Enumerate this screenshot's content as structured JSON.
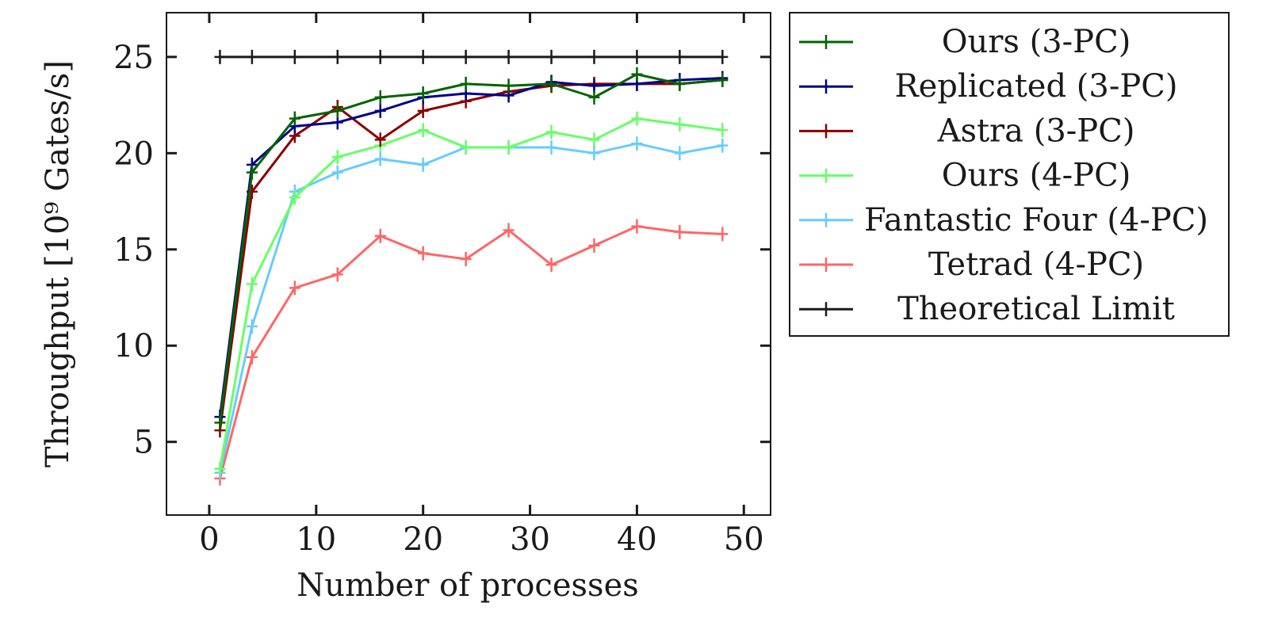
{
  "chart_data": {
    "type": "line",
    "xlabel": "Number of processes",
    "ylabel": "Throughput [10⁹ Gates/s]",
    "xlim": [
      -4,
      52.5
    ],
    "ylim": [
      1.2,
      27.3
    ],
    "xticks": [
      0,
      10,
      20,
      30,
      40,
      50
    ],
    "yticks": [
      5,
      10,
      15,
      20,
      25
    ],
    "grid": false,
    "legend_position": "outside-right",
    "x": [
      1,
      4,
      8,
      12,
      16,
      20,
      24,
      28,
      32,
      36,
      40,
      44,
      48
    ],
    "series": [
      {
        "name": "Ours (3-PC)",
        "color": "#006400",
        "values": [
          6.0,
          19.0,
          21.8,
          22.2,
          22.9,
          23.1,
          23.6,
          23.5,
          23.6,
          22.9,
          24.1,
          23.6,
          23.8
        ]
      },
      {
        "name": "Replicated (3-PC)",
        "color": "#00008b",
        "values": [
          6.3,
          19.4,
          21.4,
          21.6,
          22.2,
          22.9,
          23.1,
          23.0,
          23.7,
          23.5,
          23.6,
          23.8,
          23.9
        ]
      },
      {
        "name": "Astra (3-PC)",
        "color": "#8b0000",
        "values": [
          5.6,
          18.0,
          20.9,
          22.4,
          20.7,
          22.2,
          22.7,
          23.2,
          23.5,
          23.6,
          23.6,
          23.6,
          23.8
        ]
      },
      {
        "name": "Ours (4-PC)",
        "color": "#66ff66",
        "values": [
          3.6,
          13.2,
          17.7,
          19.8,
          20.4,
          21.2,
          20.3,
          20.3,
          21.1,
          20.7,
          21.8,
          21.5,
          21.2
        ]
      },
      {
        "name": "Fantastic Four (4-PC)",
        "color": "#66ccff",
        "values": [
          3.4,
          11.0,
          18.0,
          19.0,
          19.7,
          19.4,
          20.3,
          20.3,
          20.3,
          20.0,
          20.5,
          20.0,
          20.4
        ]
      },
      {
        "name": "Tetrad (4-PC)",
        "color": "#ff6666",
        "values": [
          3.1,
          9.4,
          13.0,
          13.7,
          15.7,
          14.8,
          14.5,
          16.0,
          14.2,
          15.2,
          16.2,
          15.9,
          15.8
        ]
      },
      {
        "name": "Theoretical Limit",
        "color": "#1a1a1a",
        "values": [
          25,
          25,
          25,
          25,
          25,
          25,
          25,
          25,
          25,
          25,
          25,
          25,
          25
        ]
      }
    ]
  }
}
